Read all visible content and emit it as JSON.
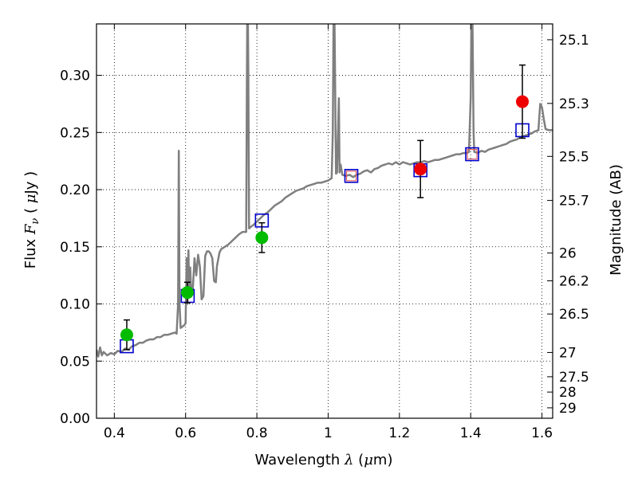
{
  "chart_data": {
    "type": "scatter",
    "xlabel": {
      "pre": "Wavelength  ",
      "sym": "λ",
      "unit_open": " (",
      "mu": "μ",
      "unit": "m)"
    },
    "ylabel": {
      "pre": "Flux  ",
      "sym": "F",
      "sub": "ν",
      "unit_open": "  ( ",
      "mu": "μ",
      "unit": "Jy )"
    },
    "y2label": "Magnitude (AB)",
    "xlim": [
      0.35,
      1.63
    ],
    "ylim": [
      0.0,
      0.345
    ],
    "grid": true,
    "x_ticks": [
      0.4,
      0.6,
      0.8,
      1.0,
      1.2,
      1.4,
      1.6
    ],
    "x_tick_labels": [
      "0.4",
      "0.6",
      "0.8",
      "1",
      "1.2",
      "1.4",
      "1.6"
    ],
    "y_ticks": [
      0.0,
      0.05,
      0.1,
      0.15,
      0.2,
      0.25,
      0.3
    ],
    "y_tick_labels": [
      "0.00",
      "0.05",
      "0.10",
      "0.15",
      "0.20",
      "0.25",
      "0.30"
    ],
    "mag_ticks": [
      {
        "mag": 25.1,
        "label": "25.1"
      },
      {
        "mag": 25.3,
        "label": "25.3"
      },
      {
        "mag": 25.5,
        "label": "25.5"
      },
      {
        "mag": 25.7,
        "label": "25.7"
      },
      {
        "mag": 26.0,
        "label": "26"
      },
      {
        "mag": 26.2,
        "label": "26.2"
      },
      {
        "mag": 26.5,
        "label": "26.5"
      },
      {
        "mag": 27.0,
        "label": "27"
      },
      {
        "mag": 27.5,
        "label": "27.5"
      },
      {
        "mag": 28.0,
        "label": "28"
      },
      {
        "mag": 29.0,
        "label": "29"
      }
    ],
    "colors": {
      "spectrum": "#7f7f7f",
      "green": "#00bb00",
      "red": "#ee0000",
      "model_box": "#0000cc",
      "model_box_inner": "#e06060",
      "errorbar": "#000000"
    },
    "spectrum": [
      [
        0.35,
        0.06
      ],
      [
        0.355,
        0.054
      ],
      [
        0.36,
        0.062
      ],
      [
        0.365,
        0.055
      ],
      [
        0.37,
        0.058
      ],
      [
        0.38,
        0.055
      ],
      [
        0.39,
        0.057
      ],
      [
        0.4,
        0.056
      ],
      [
        0.41,
        0.059
      ],
      [
        0.42,
        0.058
      ],
      [
        0.43,
        0.061
      ],
      [
        0.44,
        0.06
      ],
      [
        0.45,
        0.063
      ],
      [
        0.46,
        0.064
      ],
      [
        0.47,
        0.066
      ],
      [
        0.48,
        0.066
      ],
      [
        0.49,
        0.068
      ],
      [
        0.5,
        0.069
      ],
      [
        0.51,
        0.069
      ],
      [
        0.52,
        0.071
      ],
      [
        0.53,
        0.071
      ],
      [
        0.54,
        0.073
      ],
      [
        0.55,
        0.073
      ],
      [
        0.56,
        0.074
      ],
      [
        0.57,
        0.075
      ],
      [
        0.575,
        0.074
      ],
      [
        0.579,
        0.1
      ],
      [
        0.581,
        0.234
      ],
      [
        0.583,
        0.1
      ],
      [
        0.586,
        0.079
      ],
      [
        0.59,
        0.08
      ],
      [
        0.595,
        0.081
      ],
      [
        0.6,
        0.083
      ],
      [
        0.603,
        0.14
      ],
      [
        0.605,
        0.1
      ],
      [
        0.608,
        0.147
      ],
      [
        0.61,
        0.11
      ],
      [
        0.613,
        0.132
      ],
      [
        0.616,
        0.108
      ],
      [
        0.62,
        0.112
      ],
      [
        0.625,
        0.14
      ],
      [
        0.63,
        0.125
      ],
      [
        0.635,
        0.143
      ],
      [
        0.64,
        0.133
      ],
      [
        0.645,
        0.104
      ],
      [
        0.65,
        0.107
      ],
      [
        0.655,
        0.142
      ],
      [
        0.66,
        0.146
      ],
      [
        0.665,
        0.146
      ],
      [
        0.67,
        0.144
      ],
      [
        0.675,
        0.14
      ],
      [
        0.68,
        0.12
      ],
      [
        0.685,
        0.119
      ],
      [
        0.688,
        0.133
      ],
      [
        0.695,
        0.145
      ],
      [
        0.7,
        0.148
      ],
      [
        0.71,
        0.15
      ],
      [
        0.72,
        0.152
      ],
      [
        0.73,
        0.155
      ],
      [
        0.74,
        0.158
      ],
      [
        0.75,
        0.161
      ],
      [
        0.76,
        0.163
      ],
      [
        0.77,
        0.163
      ],
      [
        0.772,
        0.3
      ],
      [
        0.773,
        0.345
      ],
      [
        0.775,
        0.345
      ],
      [
        0.776,
        0.3
      ],
      [
        0.778,
        0.166
      ],
      [
        0.785,
        0.168
      ],
      [
        0.79,
        0.169
      ],
      [
        0.8,
        0.172
      ],
      [
        0.81,
        0.175
      ],
      [
        0.82,
        0.178
      ],
      [
        0.83,
        0.18
      ],
      [
        0.84,
        0.183
      ],
      [
        0.85,
        0.186
      ],
      [
        0.86,
        0.188
      ],
      [
        0.87,
        0.19
      ],
      [
        0.88,
        0.193
      ],
      [
        0.89,
        0.195
      ],
      [
        0.9,
        0.197
      ],
      [
        0.91,
        0.199
      ],
      [
        0.92,
        0.2
      ],
      [
        0.93,
        0.201
      ],
      [
        0.94,
        0.203
      ],
      [
        0.95,
        0.204
      ],
      [
        0.96,
        0.205
      ],
      [
        0.97,
        0.206
      ],
      [
        0.98,
        0.206
      ],
      [
        0.99,
        0.207
      ],
      [
        1.0,
        0.208
      ],
      [
        1.005,
        0.209
      ],
      [
        1.01,
        0.21
      ],
      [
        1.013,
        0.25
      ],
      [
        1.015,
        0.345
      ],
      [
        1.018,
        0.345
      ],
      [
        1.02,
        0.28
      ],
      [
        1.022,
        0.214
      ],
      [
        1.025,
        0.215
      ],
      [
        1.03,
        0.28
      ],
      [
        1.032,
        0.215
      ],
      [
        1.035,
        0.222
      ],
      [
        1.04,
        0.213
      ],
      [
        1.05,
        0.212
      ],
      [
        1.06,
        0.213
      ],
      [
        1.07,
        0.211
      ],
      [
        1.08,
        0.213
      ],
      [
        1.09,
        0.214
      ],
      [
        1.1,
        0.216
      ],
      [
        1.11,
        0.217
      ],
      [
        1.12,
        0.215
      ],
      [
        1.13,
        0.218
      ],
      [
        1.14,
        0.219
      ],
      [
        1.15,
        0.221
      ],
      [
        1.16,
        0.222
      ],
      [
        1.17,
        0.223
      ],
      [
        1.18,
        0.222
      ],
      [
        1.19,
        0.224
      ],
      [
        1.2,
        0.222
      ],
      [
        1.21,
        0.224
      ],
      [
        1.22,
        0.223
      ],
      [
        1.23,
        0.222
      ],
      [
        1.24,
        0.223
      ],
      [
        1.25,
        0.224
      ],
      [
        1.26,
        0.224
      ],
      [
        1.27,
        0.225
      ],
      [
        1.28,
        0.224
      ],
      [
        1.29,
        0.225
      ],
      [
        1.3,
        0.226
      ],
      [
        1.31,
        0.226
      ],
      [
        1.32,
        0.227
      ],
      [
        1.33,
        0.228
      ],
      [
        1.34,
        0.229
      ],
      [
        1.35,
        0.23
      ],
      [
        1.36,
        0.231
      ],
      [
        1.37,
        0.231
      ],
      [
        1.38,
        0.232
      ],
      [
        1.39,
        0.232
      ],
      [
        1.395,
        0.233
      ],
      [
        1.4,
        0.28
      ],
      [
        1.402,
        0.345
      ],
      [
        1.405,
        0.345
      ],
      [
        1.408,
        0.25
      ],
      [
        1.41,
        0.233
      ],
      [
        1.42,
        0.232
      ],
      [
        1.43,
        0.234
      ],
      [
        1.44,
        0.233
      ],
      [
        1.45,
        0.235
      ],
      [
        1.46,
        0.236
      ],
      [
        1.47,
        0.237
      ],
      [
        1.48,
        0.238
      ],
      [
        1.49,
        0.239
      ],
      [
        1.5,
        0.24
      ],
      [
        1.51,
        0.242
      ],
      [
        1.52,
        0.243
      ],
      [
        1.53,
        0.244
      ],
      [
        1.54,
        0.246
      ],
      [
        1.55,
        0.247
      ],
      [
        1.56,
        0.248
      ],
      [
        1.57,
        0.249
      ],
      [
        1.58,
        0.251
      ],
      [
        1.59,
        0.252
      ],
      [
        1.595,
        0.275
      ],
      [
        1.6,
        0.272
      ],
      [
        1.605,
        0.262
      ],
      [
        1.61,
        0.253
      ],
      [
        1.62,
        0.252
      ],
      [
        1.63,
        0.252
      ]
    ],
    "green_points": [
      {
        "x": 0.435,
        "y": 0.073,
        "err": 0.013
      },
      {
        "x": 0.605,
        "y": 0.11,
        "err": 0.009
      },
      {
        "x": 0.814,
        "y": 0.158,
        "err": 0.013
      }
    ],
    "red_points": [
      {
        "x": 1.259,
        "y": 0.218,
        "err": 0.025
      },
      {
        "x": 1.545,
        "y": 0.277,
        "err": 0.032
      }
    ],
    "model_boxes": [
      {
        "x": 0.435,
        "y": 0.063,
        "inner": false
      },
      {
        "x": 0.606,
        "y": 0.107,
        "inner": false
      },
      {
        "x": 0.814,
        "y": 0.173,
        "inner": false
      },
      {
        "x": 1.065,
        "y": 0.212,
        "inner": true
      },
      {
        "x": 1.259,
        "y": 0.217,
        "inner": false
      },
      {
        "x": 1.404,
        "y": 0.231,
        "inner": true
      },
      {
        "x": 1.545,
        "y": 0.252,
        "inner": false
      }
    ]
  }
}
